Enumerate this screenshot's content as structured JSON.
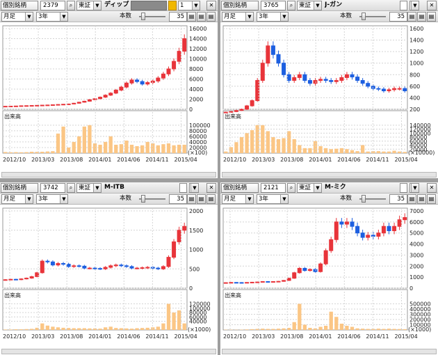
{
  "panels": [
    {
      "id": "p1",
      "mode_label": "個別銘柄",
      "code": "2379",
      "market": "東証",
      "name": "ディップ",
      "period": "月足",
      "span": "3年",
      "count_label": "本数",
      "count": "35",
      "vol_label": "出来高",
      "vol_unit": "(×100)",
      "price_ticks": [
        "16000",
        "14000",
        "12000",
        "10000",
        "8000",
        "6000",
        "4000",
        "2000",
        "0"
      ],
      "vol_ticks": [
        "100000",
        "80000",
        "60000",
        "40000",
        "20000"
      ],
      "x_labels": [
        "2012/10",
        "2013/03",
        "2013/08",
        "2014/01",
        "2014/06",
        "2014/11",
        "2015/04"
      ]
    },
    {
      "id": "p2",
      "mode_label": "個別銘柄",
      "code": "3765",
      "market": "東証",
      "name": "J-ガン",
      "period": "月足",
      "span": "3年",
      "count_label": "本数",
      "count": "35",
      "vol_label": "出来高",
      "vol_unit": "(×10000)",
      "price_ticks": [
        "1600",
        "1400",
        "1200",
        "1000",
        "800",
        "600",
        "400",
        "200"
      ],
      "vol_ticks": [
        "140000",
        "120000",
        "100000",
        "80000",
        "60000",
        "40000",
        "20000"
      ],
      "x_labels": [
        "2012/10",
        "2013/03",
        "2013/08",
        "2014/01",
        "2014/06",
        "2014/11",
        "2015/04"
      ]
    },
    {
      "id": "p3",
      "mode_label": "個別銘柄",
      "code": "3742",
      "market": "東証",
      "name": "M-ITB",
      "period": "月足",
      "span": "3年",
      "count_label": "本数",
      "count": "35",
      "vol_label": "出来高",
      "vol_unit": "(×1000)",
      "price_ticks": [
        "2000",
        "1500",
        "1000",
        "500",
        "0"
      ],
      "vol_ticks": [
        "120000",
        "100000",
        "80000",
        "60000",
        "40000"
      ],
      "x_labels": [
        "2012/10",
        "2013/03",
        "2013/08",
        "2014/01",
        "2014/06",
        "2014/11",
        "2015/04"
      ]
    },
    {
      "id": "p4",
      "mode_label": "個別銘柄",
      "code": "2121",
      "market": "東証",
      "name": "M-ミク",
      "period": "月足",
      "span": "3年",
      "count_label": "本数",
      "count": "35",
      "vol_label": "出来高",
      "vol_unit": "(×1000)",
      "price_ticks": [
        "7000",
        "6000",
        "5000",
        "4000",
        "3000",
        "2000",
        "1000",
        "0"
      ],
      "vol_ticks": [
        "500000",
        "400000",
        "300000",
        "200000",
        "100000"
      ],
      "x_labels": [
        "2012/10",
        "2013/03",
        "2013/08",
        "2014/01",
        "2014/06",
        "2014/11",
        "2015/04"
      ]
    }
  ],
  "panel1_extra": {
    "value_field": "1"
  },
  "icons": {
    "search": "magnifier-icon",
    "dropdown": "chevron-down-icon",
    "settings": "chart-type-icon",
    "close": "close-icon"
  },
  "colors": {
    "up": "#e8343a",
    "down": "#1d5fe0",
    "volume": "#fbc685"
  },
  "chart_data": [
    {
      "type": "candlestick",
      "series": [
        {
          "name": "price",
          "values": [
            600,
            620,
            650,
            700,
            720,
            750,
            780,
            820,
            850,
            900,
            950,
            1000,
            1050,
            1200,
            1400,
            1600,
            1900,
            2100,
            2400,
            2800,
            3200,
            3800,
            4400,
            5200,
            5800,
            5500,
            5000,
            5300,
            5600,
            6200,
            7000,
            8000,
            9500,
            11500,
            14000
          ]
        },
        {
          "name": "volume",
          "values": [
            4000,
            3000,
            3500,
            3000,
            3500,
            5000,
            4500,
            5000,
            6000,
            7000,
            70000,
            95000,
            20000,
            40000,
            60000,
            95000,
            100000,
            35000,
            30000,
            40000,
            60000,
            30000,
            32000,
            45000,
            30000,
            25000,
            28000,
            40000,
            35000,
            28000,
            32000,
            35000,
            28000,
            30000,
            30000
          ]
        }
      ]
    },
    {
      "type": "candlestick",
      "series": [
        {
          "name": "price",
          "values": [
            150,
            160,
            180,
            200,
            260,
            350,
            700,
            1000,
            1300,
            1150,
            1000,
            800,
            700,
            750,
            800,
            700,
            650,
            700,
            720,
            700,
            680,
            700,
            750,
            800,
            760,
            700,
            650,
            600,
            560,
            550,
            520,
            540,
            560,
            560,
            520
          ]
        },
        {
          "name": "volume",
          "values": [
            8000,
            30000,
            55000,
            80000,
            100000,
            115000,
            140000,
            140000,
            110000,
            80000,
            70000,
            75000,
            110000,
            70000,
            40000,
            25000,
            25000,
            60000,
            35000,
            25000,
            20000,
            22000,
            25000,
            20000,
            15000,
            10000,
            40000,
            8000,
            10000,
            10000,
            8000,
            8000,
            12000,
            8000,
            6000
          ]
        }
      ]
    },
    {
      "type": "candlestick",
      "series": [
        {
          "name": "price",
          "values": [
            220,
            230,
            220,
            240,
            260,
            300,
            400,
            700,
            680,
            600,
            640,
            620,
            560,
            580,
            570,
            520,
            520,
            510,
            500,
            540,
            580,
            600,
            580,
            560,
            520,
            520,
            530,
            540,
            520,
            500,
            560,
            800,
            1200,
            1500,
            1600
          ]
        },
        {
          "name": "volume",
          "values": [
            2000,
            2000,
            3000,
            3000,
            4000,
            5000,
            10000,
            30000,
            20000,
            15000,
            12000,
            10000,
            9000,
            8000,
            8000,
            8000,
            7000,
            7000,
            6000,
            12000,
            15000,
            9000,
            8000,
            7000,
            6000,
            8000,
            9000,
            10000,
            12000,
            15000,
            30000,
            120000,
            80000,
            90000,
            30000
          ]
        }
      ]
    },
    {
      "type": "candlestick",
      "series": [
        {
          "name": "price",
          "values": [
            500,
            520,
            510,
            500,
            520,
            540,
            560,
            600,
            580,
            600,
            620,
            700,
            900,
            1400,
            1800,
            1600,
            1700,
            1500,
            2200,
            3400,
            4400,
            6000,
            5800,
            6000,
            5600,
            5000,
            4600,
            4800,
            4700,
            5000,
            5600,
            5200,
            5600,
            6200,
            6400
          ]
        },
        {
          "name": "volume",
          "values": [
            5000,
            5000,
            4000,
            6000,
            10000,
            15000,
            20000,
            25000,
            20000,
            20000,
            25000,
            30000,
            40000,
            150000,
            500000,
            100000,
            40000,
            30000,
            60000,
            80000,
            350000,
            250000,
            120000,
            80000,
            60000,
            30000,
            25000,
            20000,
            20000,
            25000,
            20000,
            25000,
            20000,
            18000,
            15000
          ]
        }
      ]
    }
  ]
}
